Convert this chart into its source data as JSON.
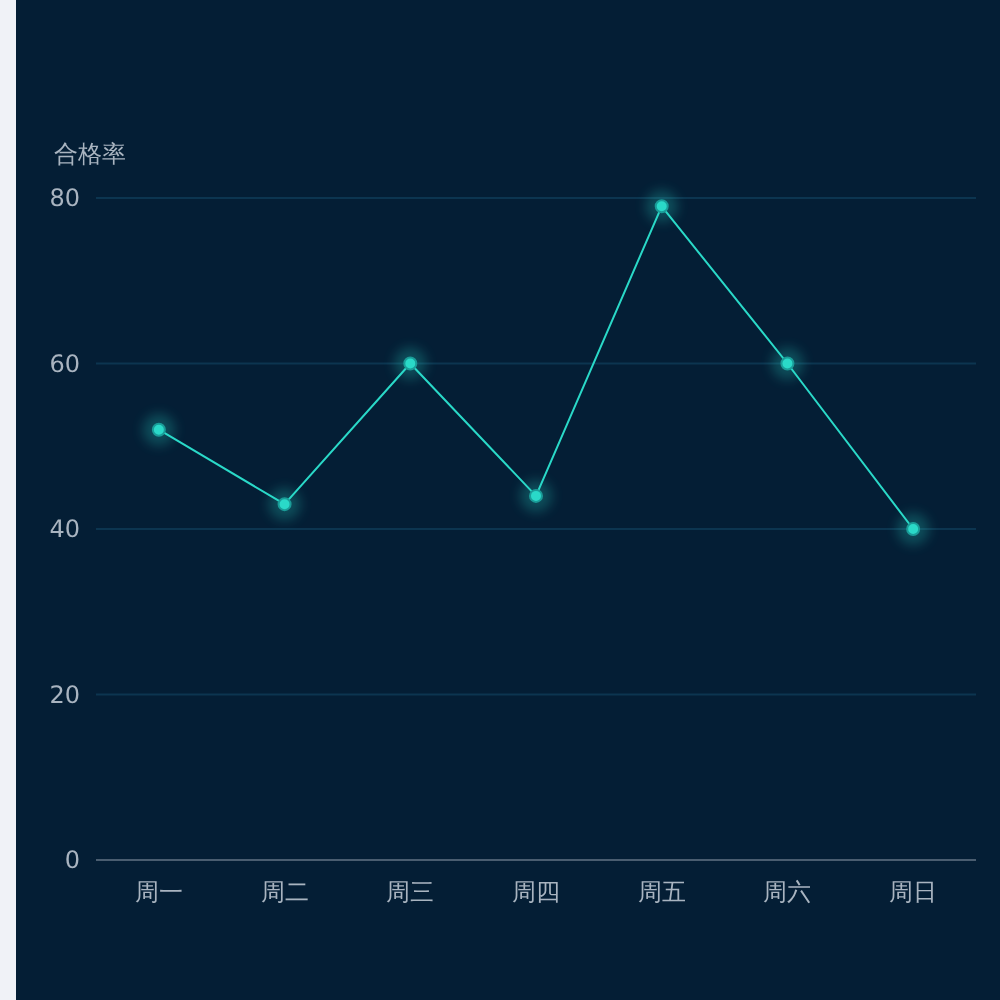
{
  "chart_data": {
    "type": "line",
    "ylabel": "合格率",
    "categories": [
      "周一",
      "周二",
      "周三",
      "周四",
      "周五",
      "周六",
      "周日"
    ],
    "values": [
      52,
      43,
      60,
      44,
      79,
      60,
      40
    ],
    "color": "#2ad9c8",
    "ylim": [
      0,
      80
    ],
    "yticks": [
      0,
      20,
      40,
      60,
      80
    ],
    "grid": "y",
    "marker": "circle"
  }
}
